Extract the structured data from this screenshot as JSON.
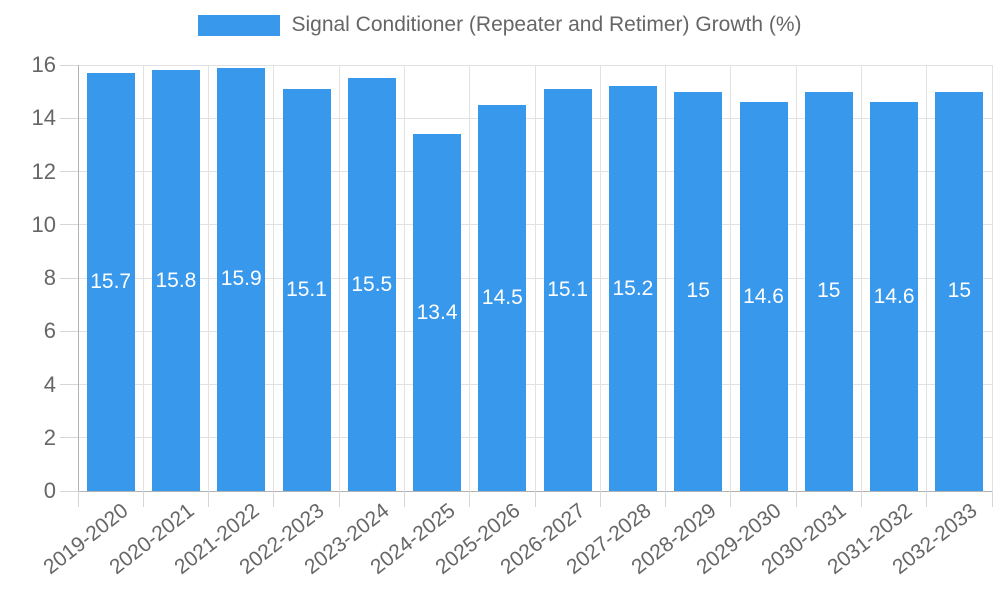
{
  "chart_data": {
    "type": "bar",
    "title": "Signal Conditioner (Repeater and Retimer) Growth (%)",
    "legend_position": "top",
    "categories": [
      "2019-2020",
      "2020-2021",
      "2021-2022",
      "2022-2023",
      "2023-2024",
      "2024-2025",
      "2025-2026",
      "2026-2027",
      "2027-2028",
      "2028-2029",
      "2029-2030",
      "2030-2031",
      "2031-2032",
      "2032-2033"
    ],
    "values": [
      15.7,
      15.8,
      15.9,
      15.1,
      15.5,
      13.4,
      14.5,
      15.1,
      15.2,
      15,
      14.6,
      15,
      14.6,
      15
    ],
    "xlabel": "",
    "ylabel": "",
    "ylim": [
      0,
      16
    ],
    "yticks": [
      0,
      2,
      4,
      6,
      8,
      10,
      12,
      14,
      16
    ],
    "grid": true,
    "bar_value_labels": [
      "15.7",
      "15.8",
      "15.9",
      "15.1",
      "15.5",
      "13.4",
      "14.5",
      "15.1",
      "15.2",
      "15",
      "14.6",
      "15",
      "14.6",
      "15"
    ],
    "colors": {
      "bar": "#3898EC",
      "grid": "#E2E2E2",
      "axis": "#B3B3B3",
      "tick_mark": "#D6D6D6",
      "tick_text": "#666666",
      "legend_text": "#666666",
      "bar_value_text": "#FFFFFF",
      "background": "#FFFFFF"
    }
  }
}
